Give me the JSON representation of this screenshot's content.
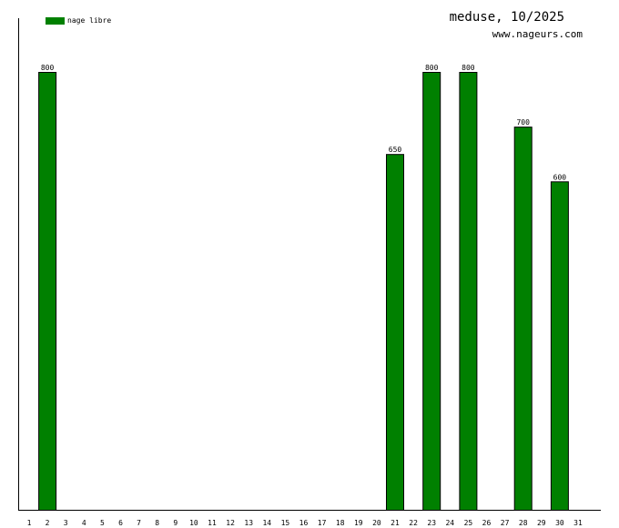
{
  "chart_data": {
    "type": "bar",
    "title": "meduse, 10/2025",
    "subtitle": "www.nageurs.com",
    "legend_position": "top-left",
    "series": [
      {
        "name": "nage libre",
        "color": "#008000",
        "points": [
          {
            "x": 2,
            "y": 800
          },
          {
            "x": 21,
            "y": 650
          },
          {
            "x": 23,
            "y": 800
          },
          {
            "x": 25,
            "y": 800
          },
          {
            "x": 28,
            "y": 700
          },
          {
            "x": 30,
            "y": 600
          }
        ]
      }
    ],
    "x_ticks": [
      1,
      2,
      3,
      4,
      5,
      6,
      7,
      8,
      9,
      10,
      11,
      12,
      13,
      14,
      15,
      16,
      17,
      18,
      19,
      20,
      21,
      22,
      23,
      24,
      25,
      26,
      27,
      28,
      29,
      30,
      31
    ],
    "ylim": [
      0,
      800
    ],
    "grid": false
  }
}
